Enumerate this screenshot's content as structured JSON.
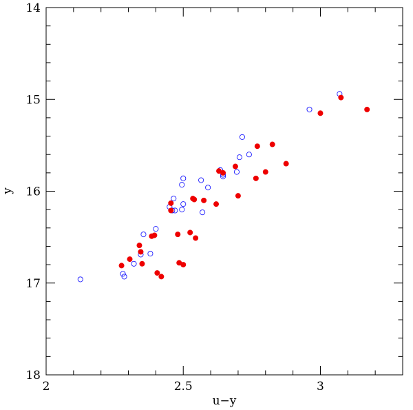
{
  "chart_data": {
    "type": "scatter",
    "xlabel": "u−y",
    "ylabel": "y",
    "xlim": [
      2,
      3.3
    ],
    "ylim": [
      18,
      14
    ],
    "y_inverted": true,
    "x_major_ticks": [
      2,
      2.5,
      3
    ],
    "x_tick_labels": [
      "2",
      "2.5",
      "3"
    ],
    "x_minor_step": 0.1,
    "y_major_ticks": [
      14,
      15,
      16,
      17,
      18
    ],
    "y_tick_labels": [
      "14",
      "15",
      "16",
      "17",
      "18"
    ],
    "y_minor_step": 0.2,
    "grid": false,
    "series_style": [
      {
        "marker": "open-circle",
        "color": "#1a1aff"
      },
      {
        "marker": "filled-circle",
        "color": "#ee0000"
      }
    ],
    "series": [
      {
        "x": [
          2.125,
          2.28,
          2.285,
          2.32,
          2.345,
          2.355,
          2.38,
          2.4,
          2.45,
          2.46,
          2.465,
          2.47,
          2.495,
          2.5,
          2.5,
          2.495,
          2.565,
          2.57,
          2.59,
          2.635,
          2.645,
          2.645,
          2.695,
          2.705,
          2.715,
          2.74,
          2.96,
          3.07
        ],
        "y": [
          16.96,
          16.9,
          16.93,
          16.79,
          16.69,
          16.47,
          16.68,
          16.41,
          16.17,
          16.21,
          16.08,
          16.21,
          15.93,
          15.86,
          16.14,
          16.2,
          15.88,
          16.23,
          15.96,
          15.77,
          15.82,
          15.84,
          15.79,
          15.63,
          15.41,
          15.6,
          15.11,
          14.94
        ]
      },
      {
        "x": [
          2.275,
          2.305,
          2.34,
          2.345,
          2.35,
          2.385,
          2.395,
          2.405,
          2.42,
          2.455,
          2.455,
          2.48,
          2.485,
          2.5,
          2.525,
          2.535,
          2.54,
          2.545,
          2.575,
          2.62,
          2.63,
          2.645,
          2.69,
          2.7,
          2.765,
          2.77,
          2.8,
          2.825,
          2.875,
          3.0,
          3.075,
          3.17
        ],
        "y": [
          16.81,
          16.74,
          16.59,
          16.66,
          16.79,
          16.49,
          16.48,
          16.89,
          16.93,
          16.13,
          16.21,
          16.47,
          16.78,
          16.8,
          16.45,
          16.08,
          16.09,
          16.51,
          16.1,
          16.14,
          15.78,
          15.8,
          15.73,
          16.05,
          15.86,
          15.51,
          15.79,
          15.49,
          15.7,
          15.15,
          14.98,
          15.11
        ]
      }
    ]
  }
}
